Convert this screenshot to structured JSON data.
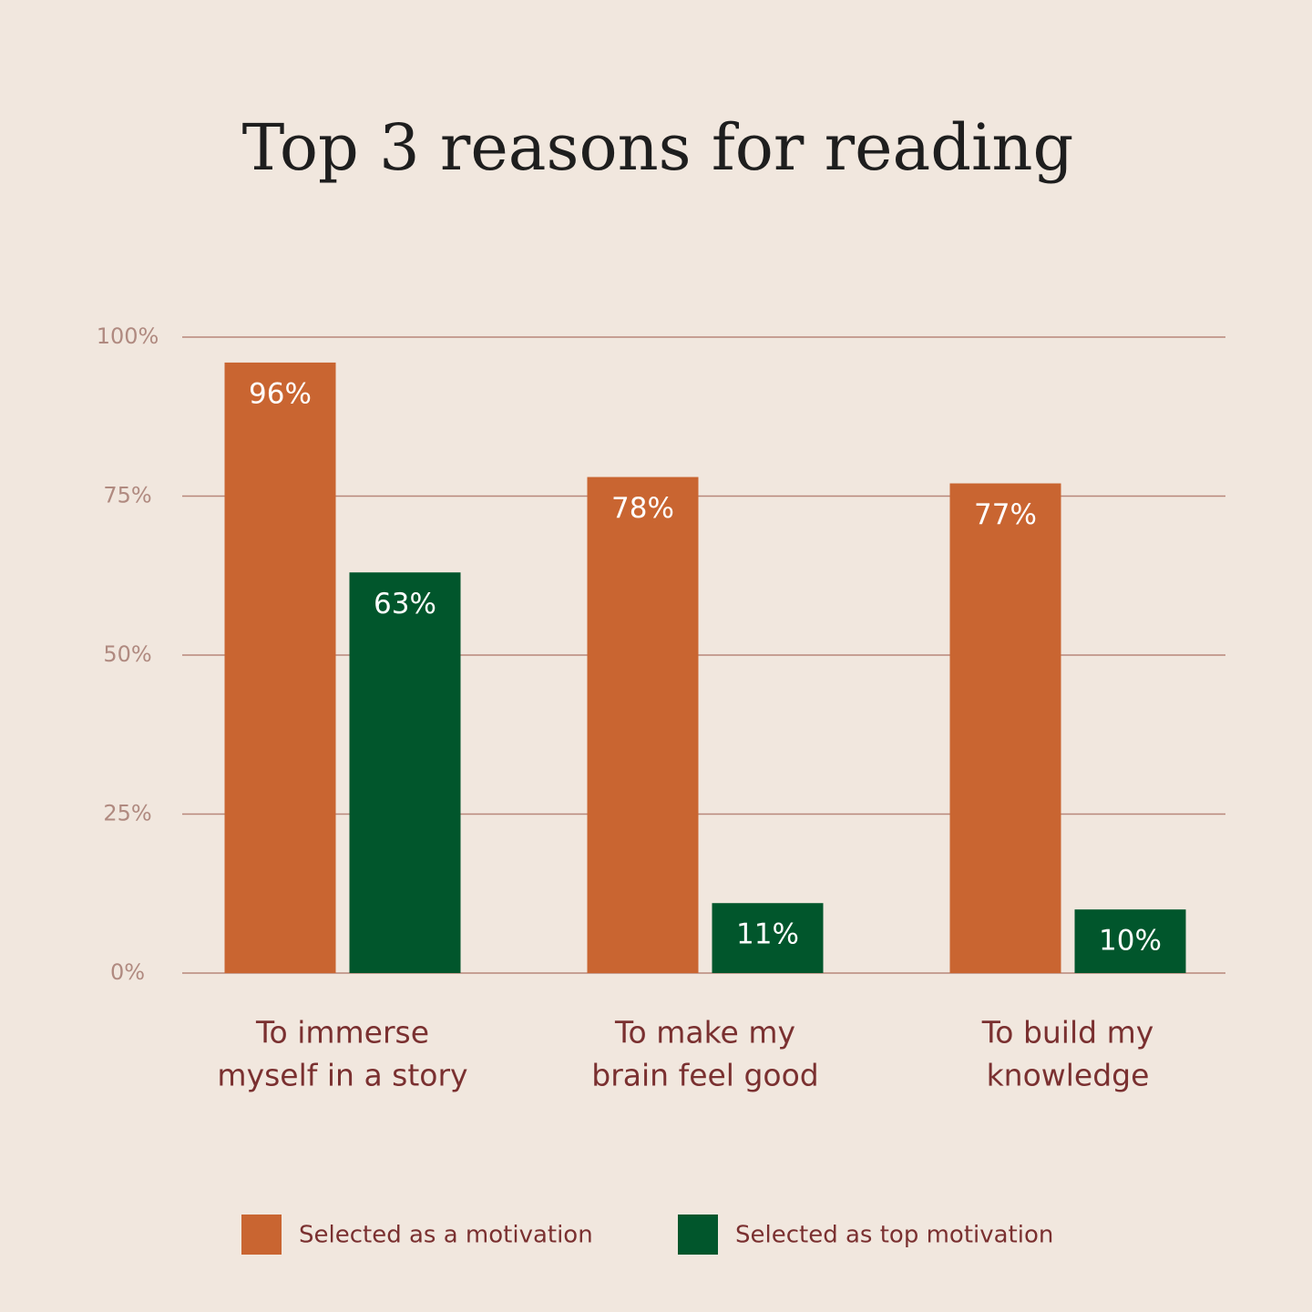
{
  "chart_data": {
    "type": "bar",
    "title": "Top 3 reasons for reading",
    "categories": [
      [
        "To immerse",
        "myself in a story"
      ],
      [
        "To make my",
        "brain feel good"
      ],
      [
        "To build my",
        "knowledge"
      ]
    ],
    "series": [
      {
        "name": "Selected as a motivation",
        "color": "#c96531",
        "values": [
          96,
          78,
          77
        ],
        "value_labels": [
          "96%",
          "78%",
          "77%"
        ]
      },
      {
        "name": "Selected as top motivation",
        "color": "#01562c",
        "values": [
          63,
          11,
          10
        ],
        "value_labels": [
          "63%",
          "11%",
          "10%"
        ]
      }
    ],
    "ylim": [
      0,
      100
    ],
    "yticks": [
      {
        "value": 0,
        "label": "0%"
      },
      {
        "value": 25,
        "label": "25%"
      },
      {
        "value": 50,
        "label": "50%"
      },
      {
        "value": 75,
        "label": "75%"
      },
      {
        "value": 100,
        "label": "100%"
      }
    ],
    "grid": true,
    "legend": "bottom"
  }
}
